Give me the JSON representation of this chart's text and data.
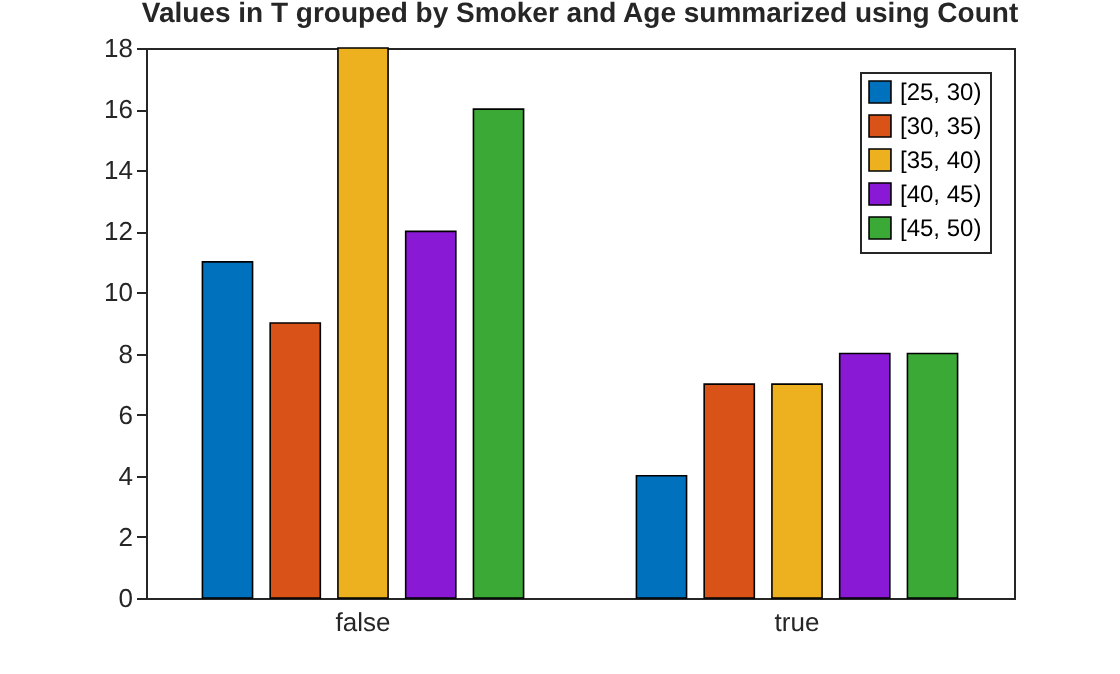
{
  "chart_data": {
    "type": "bar",
    "title": "Values in T grouped by Smoker and Age summarized using Count",
    "categories": [
      "false",
      "true"
    ],
    "series": [
      {
        "name": "[25, 30)",
        "color": "#0072bd",
        "values": [
          11,
          4
        ]
      },
      {
        "name": "[30, 35)",
        "color": "#d95319",
        "values": [
          9,
          7
        ]
      },
      {
        "name": "[35, 40)",
        "color": "#edb120",
        "values": [
          18,
          7
        ]
      },
      {
        "name": "[40, 45)",
        "color": "#8a19d6",
        "values": [
          12,
          8
        ]
      },
      {
        "name": "[45, 50)",
        "color": "#3aa935",
        "values": [
          16,
          8
        ]
      }
    ],
    "ylim": [
      0,
      18
    ],
    "yticks": [
      0,
      2,
      4,
      6,
      8,
      10,
      12,
      14,
      16,
      18
    ],
    "grid": false,
    "legend": "top right"
  }
}
